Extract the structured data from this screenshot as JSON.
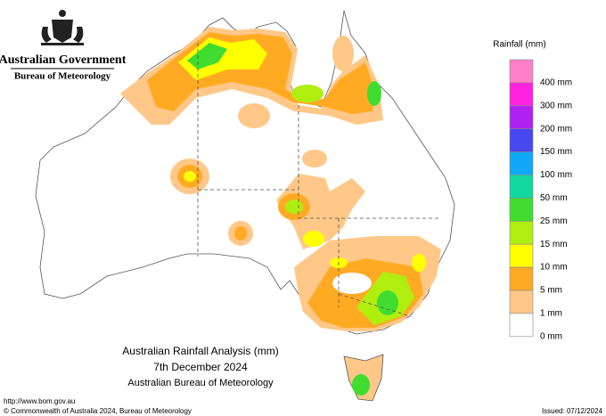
{
  "header": {
    "government": "Australian Government",
    "agency": "Bureau of Meteorology"
  },
  "legend": {
    "title": "Rainfall (mm)",
    "colors": [
      "#ff80c8",
      "#ff22e0",
      "#b020f0",
      "#4848f0",
      "#10a8f8",
      "#10d8a0",
      "#40dd30",
      "#b0ee10",
      "#ffff00",
      "#ffaa22",
      "#ffc888",
      "#ffffff"
    ],
    "labels": [
      "400 mm",
      "300 mm",
      "200 mm",
      "150 mm",
      "100 mm",
      "50 mm",
      "25 mm",
      "15 mm",
      "10 mm",
      "5 mm",
      "1 mm",
      "0 mm"
    ]
  },
  "map_title": {
    "title": "Australian Rainfall Analysis (mm)",
    "date": "7th December 2024",
    "source": "Australian Bureau of Meteorology"
  },
  "footer": {
    "url": "http://www.bom.gov.au",
    "copyright": "© Commonwealth of Australia 2024, Bureau of Meteorology",
    "issued": "Issued: 07/12/2024"
  }
}
